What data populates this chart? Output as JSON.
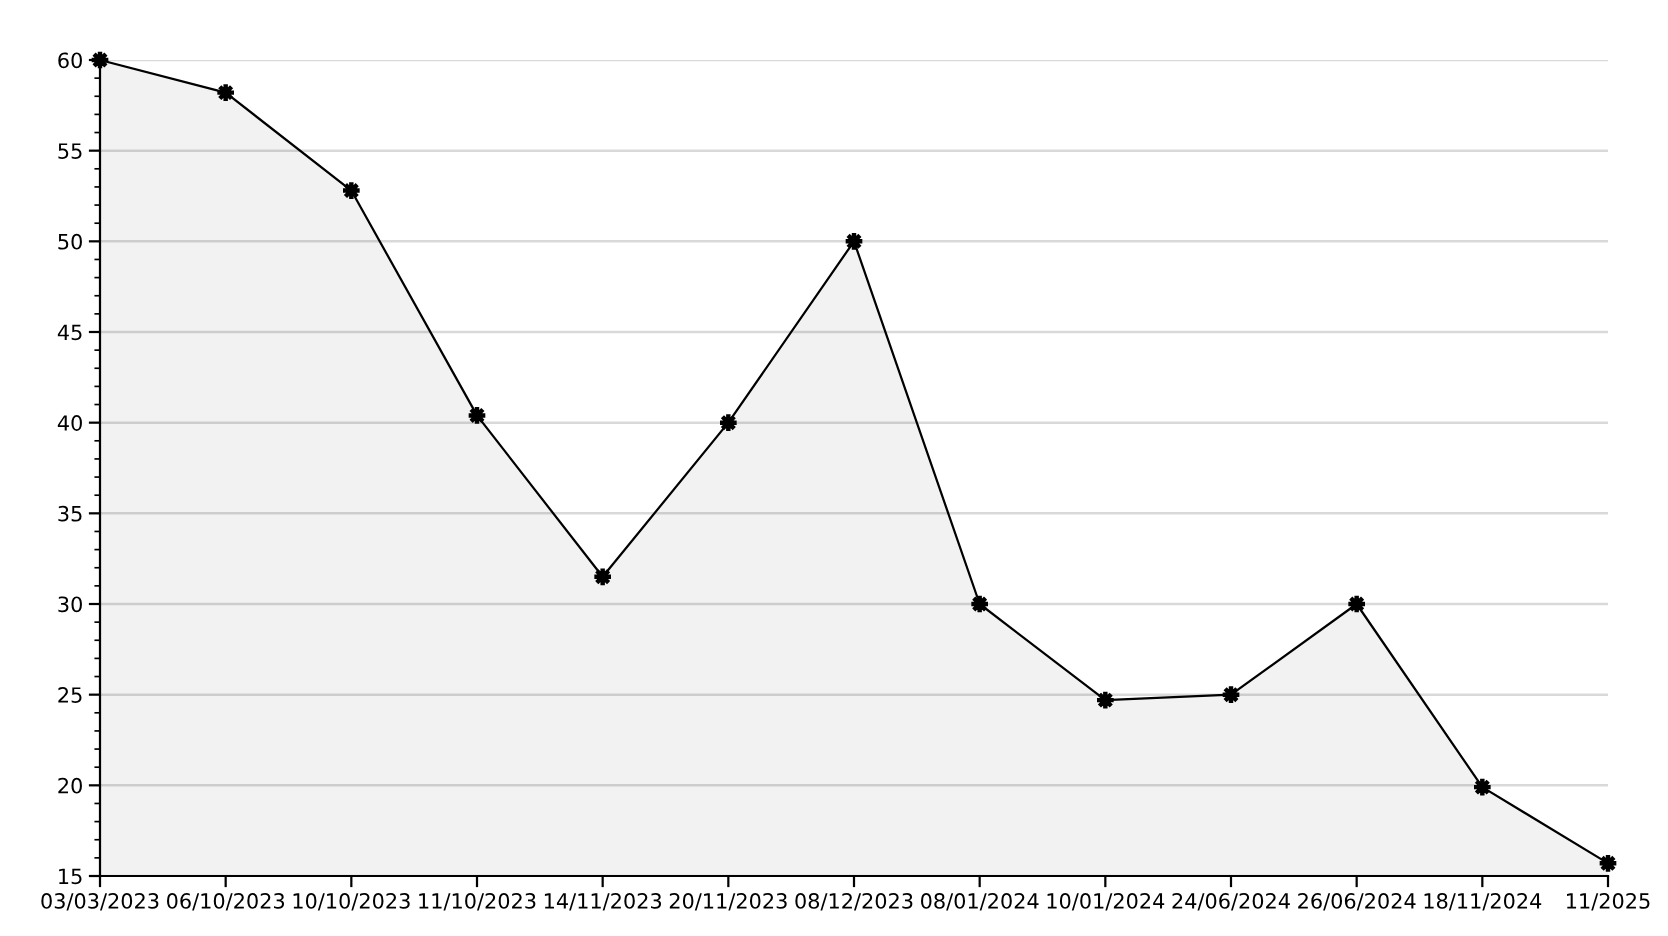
{
  "chart_data": {
    "type": "area",
    "categories": [
      "03/03/2023",
      "06/10/2023",
      "10/10/2023",
      "11/10/2023",
      "14/11/2023",
      "20/11/2023",
      "08/12/2023",
      "08/01/2024",
      "10/01/2024",
      "24/06/2024",
      "26/06/2024",
      "18/11/2024",
      "11/2025"
    ],
    "series": [
      {
        "color": "#000000",
        "values": [
          60,
          58.2,
          52.8,
          40.4,
          31.5,
          40,
          50,
          30,
          24.7,
          25,
          30,
          19.9,
          15.7
        ]
      }
    ],
    "ylim": [
      15,
      60
    ],
    "yticks": [
      15,
      20,
      25,
      30,
      35,
      40,
      45,
      50,
      55,
      60
    ],
    "grid": "y",
    "marker": "star",
    "line_style": "solid",
    "legend": false
  }
}
